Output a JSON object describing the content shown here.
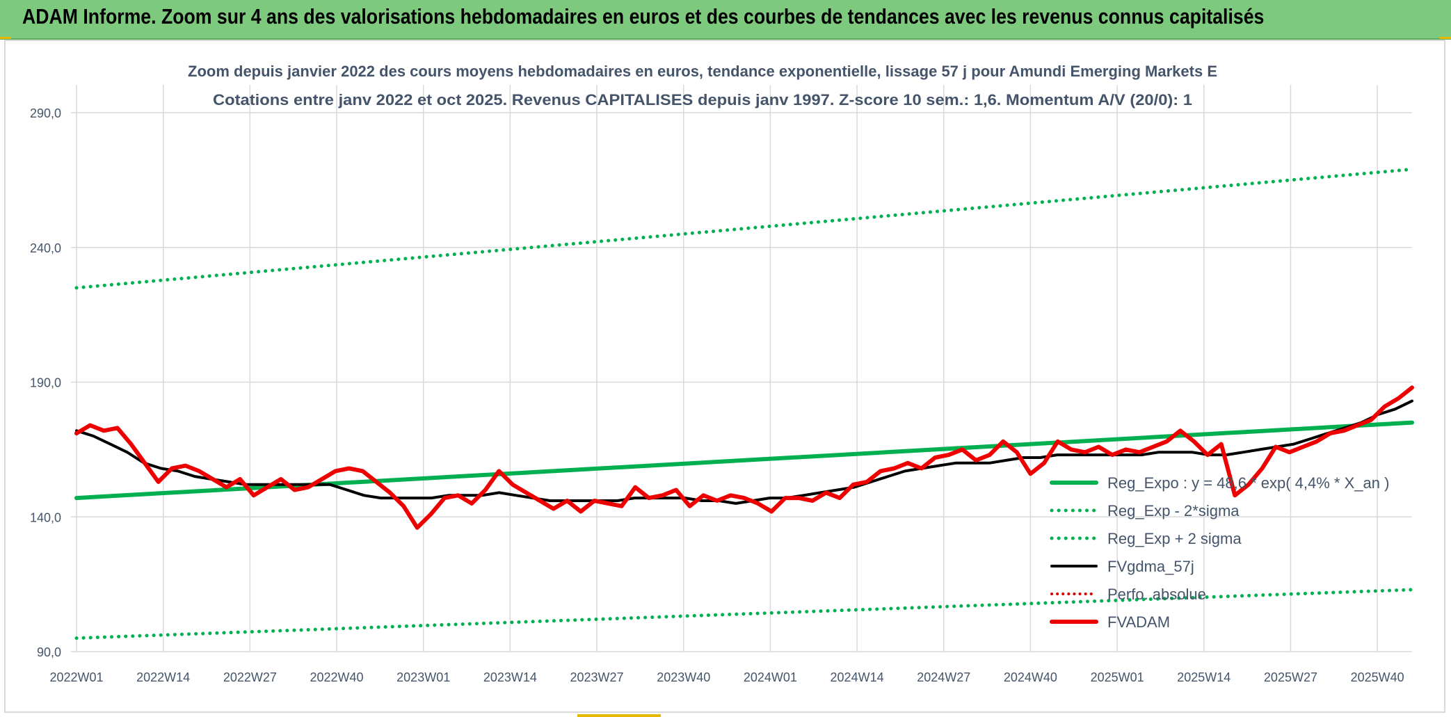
{
  "banner": {
    "title": "ADAM Informe. Zoom sur 4 ans des valorisations hebdomadaires en euros et des courbes de tendances avec les revenus connus capitalisés"
  },
  "chart_data": {
    "type": "line",
    "title": "Zoom depuis janvier 2022 des cours moyens hebdomadaires en euros, tendance exponentielle, lissage 57 j pour Amundi Emerging Markets E",
    "subtitle": "Cotations entre janv 2022 et oct 2025. Revenus CAPITALISES depuis janv 1997. Z-score 10 sem.: 1,6. Momentum A/V (20/0): 1",
    "xlabel": "",
    "ylabel": "",
    "ylim": [
      90,
      290
    ],
    "y_ticks": [
      "290,0",
      "240,0",
      "190,0",
      "140,0",
      "90,0"
    ],
    "x_ticks": [
      "2022W01",
      "2022W14",
      "2022W27",
      "2022W40",
      "2023W01",
      "2023W14",
      "2023W27",
      "2023W40",
      "2024W01",
      "2024W14",
      "2024W27",
      "2024W40",
      "2025W01",
      "2025W14",
      "2025W27",
      "2025W40"
    ],
    "grid": true,
    "legend_position": "bottom-right",
    "colors": {
      "reg_expo": "#00b050",
      "fvgdma": "#000000",
      "perfo": "#e00000",
      "fvadam": "#ee0000",
      "grid": "#d9d9d9",
      "title_text": "#44546a",
      "tick_text": "#44546a"
    },
    "series": [
      {
        "name": "Reg_Expo : y = 48,6 * exp( 4,4% *  X_an )",
        "style": "solid",
        "values": [
          147,
          175
        ]
      },
      {
        "name": "Reg_Exp - 2*sigma",
        "style": "dotted",
        "values": [
          95,
          113
        ]
      },
      {
        "name": "Reg_Exp + 2 sigma",
        "style": "dotted",
        "values": [
          225,
          269
        ]
      },
      {
        "name": "FVgdma_57j",
        "style": "solid",
        "values": [
          172,
          170,
          167,
          164,
          160,
          158,
          157,
          155,
          154,
          153,
          152,
          152,
          152,
          152,
          152,
          152,
          150,
          148,
          147,
          147,
          147,
          147,
          148,
          148,
          148,
          149,
          148,
          147,
          146,
          146,
          146,
          146,
          146,
          147,
          147,
          147,
          147,
          146,
          146,
          145,
          146,
          147,
          147,
          148,
          149,
          150,
          151,
          153,
          155,
          157,
          158,
          159,
          160,
          160,
          160,
          161,
          162,
          162,
          163,
          163,
          163,
          163,
          163,
          163,
          164,
          164,
          164,
          163,
          163,
          164,
          165,
          166,
          167,
          169,
          171,
          173,
          175,
          178,
          180,
          183
        ]
      },
      {
        "name": "Perfo. absolue",
        "style": "dotted",
        "values": []
      },
      {
        "name": "FVADAM",
        "style": "solid",
        "values": [
          171,
          174,
          172,
          173,
          167,
          160,
          153,
          158,
          159,
          157,
          154,
          151,
          154,
          148,
          151,
          154,
          150,
          151,
          154,
          157,
          158,
          157,
          153,
          149,
          144,
          136,
          141,
          147,
          148,
          145,
          150,
          157,
          152,
          149,
          146,
          143,
          146,
          142,
          146,
          145,
          144,
          151,
          147,
          148,
          150,
          144,
          148,
          146,
          148,
          147,
          145,
          142,
          147,
          147,
          146,
          149,
          147,
          152,
          153,
          157,
          158,
          160,
          158,
          162,
          163,
          165,
          161,
          163,
          168,
          164,
          156,
          160,
          168,
          165,
          164,
          166,
          163,
          165,
          164,
          166,
          168,
          172,
          168,
          163,
          167,
          148,
          152,
          158,
          166,
          164,
          166,
          168,
          171,
          172,
          174,
          176,
          181,
          184,
          188
        ]
      }
    ]
  }
}
